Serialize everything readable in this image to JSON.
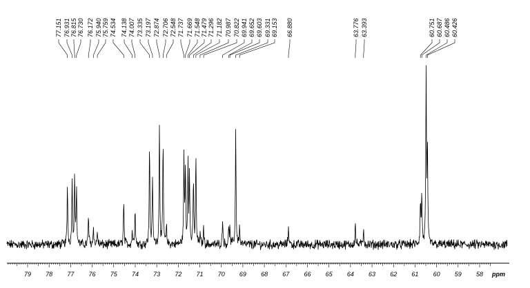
{
  "chart_data": {
    "type": "line",
    "title": "",
    "xlabel": "ppm",
    "ylabel": "",
    "xlim": [
      80,
      57.5
    ],
    "x_reversed": true,
    "grid": false,
    "legend": "none",
    "line_color": "#000000",
    "tick_labels": [
      "79",
      "78",
      "77",
      "76",
      "75",
      "74",
      "73",
      "72",
      "71",
      "70",
      "69",
      "68",
      "67",
      "66",
      "65",
      "64",
      "63",
      "62",
      "61",
      "60",
      "59",
      "58"
    ],
    "peak_labels": [
      "77.151",
      "76.931",
      "76.815",
      "76.730",
      "76.172",
      "75.940",
      "75.759",
      "74.534",
      "74.138",
      "74.007",
      "73.335",
      "73.197",
      "72.874",
      "72.706",
      "72.548",
      "71.737",
      "71.669",
      "71.548",
      "71.479",
      "71.296",
      "71.182",
      "70.987",
      "70.822",
      "69.941",
      "69.652",
      "69.603",
      "69.331",
      "69.153",
      "66.880",
      "63.776",
      "63.393",
      "60.751",
      "60.687",
      "60.486",
      "60.426"
    ],
    "peaks": [
      {
        "ppm": 77.151,
        "height": 0.36
      },
      {
        "ppm": 76.931,
        "height": 0.4
      },
      {
        "ppm": 76.815,
        "height": 0.42
      },
      {
        "ppm": 76.73,
        "height": 0.33
      },
      {
        "ppm": 76.172,
        "height": 0.17
      },
      {
        "ppm": 75.94,
        "height": 0.11
      },
      {
        "ppm": 75.759,
        "height": 0.08
      },
      {
        "ppm": 74.534,
        "height": 0.25
      },
      {
        "ppm": 74.138,
        "height": 0.08
      },
      {
        "ppm": 74.007,
        "height": 0.23
      },
      {
        "ppm": 73.335,
        "height": 0.6
      },
      {
        "ppm": 73.197,
        "height": 0.4
      },
      {
        "ppm": 72.874,
        "height": 0.72
      },
      {
        "ppm": 72.706,
        "height": 0.6
      },
      {
        "ppm": 72.548,
        "height": 0.1
      },
      {
        "ppm": 71.737,
        "height": 0.5
      },
      {
        "ppm": 71.669,
        "height": 0.45
      },
      {
        "ppm": 71.548,
        "height": 0.5
      },
      {
        "ppm": 71.479,
        "height": 0.4
      },
      {
        "ppm": 71.296,
        "height": 0.38
      },
      {
        "ppm": 71.182,
        "height": 0.52
      },
      {
        "ppm": 70.987,
        "height": 0.06
      },
      {
        "ppm": 70.822,
        "height": 0.1
      },
      {
        "ppm": 69.941,
        "height": 0.16
      },
      {
        "ppm": 69.652,
        "height": 0.1
      },
      {
        "ppm": 69.603,
        "height": 0.08
      },
      {
        "ppm": 69.331,
        "height": 0.68
      },
      {
        "ppm": 69.153,
        "height": 0.1
      },
      {
        "ppm": 66.88,
        "height": 0.12
      },
      {
        "ppm": 63.776,
        "height": 0.12
      },
      {
        "ppm": 63.393,
        "height": 0.1
      },
      {
        "ppm": 60.751,
        "height": 0.25
      },
      {
        "ppm": 60.687,
        "height": 0.3
      },
      {
        "ppm": 60.486,
        "height": 1.0
      },
      {
        "ppm": 60.426,
        "height": 0.55
      }
    ]
  }
}
